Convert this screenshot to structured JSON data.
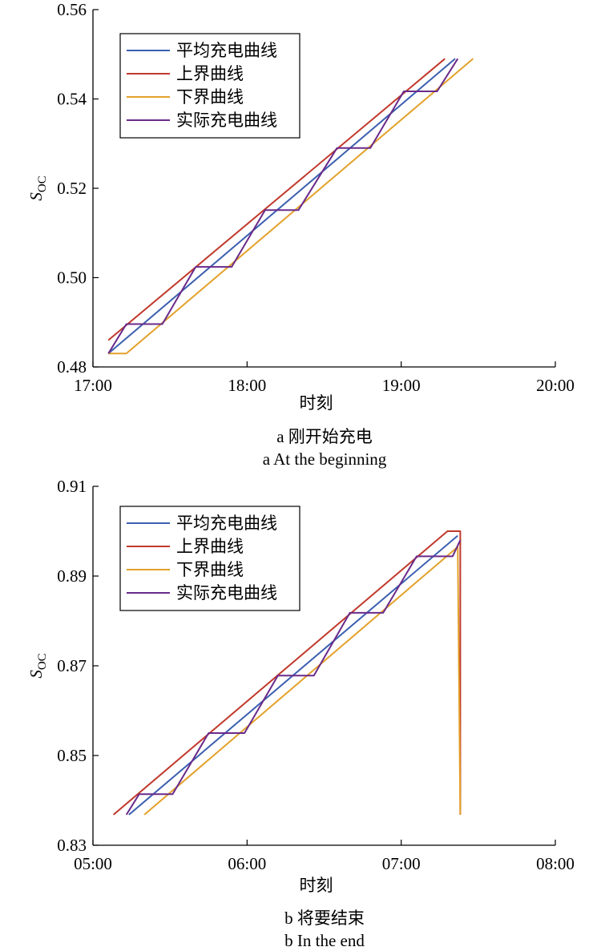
{
  "chart_data": [
    {
      "type": "line",
      "xlabel": "时刻",
      "ylabel": "S",
      "ylabel_sub": "OC",
      "caption_cn": "a  刚开始充电",
      "caption_en": "a  At the beginning",
      "x_ticks": [
        "17:00",
        "18:00",
        "19:00",
        "20:00"
      ],
      "y_ticks": [
        "0.48",
        "0.50",
        "0.52",
        "0.54",
        "0.56"
      ],
      "xlim": [
        "17:00",
        "20:00"
      ],
      "ylim": [
        0.48,
        0.56
      ],
      "legend_position": "top-left",
      "series": [
        {
          "name": "平均充电曲线",
          "color": "#3a5fb0",
          "points": [
            [
              "17:06",
              0.483
            ],
            [
              "19:21",
              0.549
            ]
          ]
        },
        {
          "name": "上界曲线",
          "color": "#c0392b",
          "points": [
            [
              "17:06",
              0.486
            ],
            [
              "19:17",
              0.549
            ]
          ]
        },
        {
          "name": "下界曲线",
          "color": "#e3a12b",
          "points": [
            [
              "17:06",
              0.483
            ],
            [
              "17:13",
              0.483
            ],
            [
              "17:15",
              0.484
            ],
            [
              "19:28",
              0.549
            ]
          ]
        },
        {
          "name": "实际充电曲线",
          "color": "#6a2a8a",
          "points": [
            [
              "17:06",
              0.483
            ],
            [
              "17:13",
              0.4896
            ],
            [
              "17:27",
              0.4896
            ],
            [
              "17:40",
              0.5024
            ],
            [
              "17:54",
              0.5024
            ],
            [
              "18:07",
              0.5151
            ],
            [
              "18:20",
              0.5151
            ],
            [
              "18:35",
              0.529
            ],
            [
              "18:48",
              0.529
            ],
            [
              "19:01",
              0.5417
            ],
            [
              "19:14",
              0.5417
            ],
            [
              "19:22",
              0.549
            ]
          ]
        }
      ]
    },
    {
      "type": "line",
      "xlabel": "时刻",
      "ylabel": "S",
      "ylabel_sub": "OC",
      "caption_cn": "b  将要结束",
      "caption_en": "b  In the end",
      "x_ticks": [
        "05:00",
        "06:00",
        "07:00",
        "08:00"
      ],
      "y_ticks": [
        "0.83",
        "0.85",
        "0.87",
        "0.89",
        "0.91"
      ],
      "xlim": [
        "05:00",
        "08:00"
      ],
      "ylim": [
        0.83,
        0.91
      ],
      "legend_position": "top-left",
      "series": [
        {
          "name": "平均充电曲线",
          "color": "#3a5fb0",
          "points": [
            [
              "05:14",
              0.8368
            ],
            [
              "07:22",
              0.899
            ]
          ]
        },
        {
          "name": "上界曲线",
          "color": "#c0392b",
          "points": [
            [
              "05:08",
              0.8368
            ],
            [
              "07:18",
              0.9
            ],
            [
              "07:23",
              0.9
            ],
            [
              "07:23",
              0.8368
            ]
          ]
        },
        {
          "name": "下界曲线",
          "color": "#e3a12b",
          "points": [
            [
              "05:20",
              0.8368
            ],
            [
              "07:22",
              0.8965
            ],
            [
              "07:23",
              0.8368
            ]
          ]
        },
        {
          "name": "实际充电曲线",
          "color": "#6a2a8a",
          "points": [
            [
              "05:13",
              0.8368
            ],
            [
              "05:18",
              0.8414
            ],
            [
              "05:31",
              0.8414
            ],
            [
              "05:45",
              0.855
            ],
            [
              "05:59",
              0.855
            ],
            [
              "06:12",
              0.8678
            ],
            [
              "06:26",
              0.8678
            ],
            [
              "06:40",
              0.8818
            ],
            [
              "06:53",
              0.8818
            ],
            [
              "07:06",
              0.8944
            ],
            [
              "07:20",
              0.8944
            ],
            [
              "07:23",
              0.898
            ]
          ]
        }
      ]
    }
  ]
}
